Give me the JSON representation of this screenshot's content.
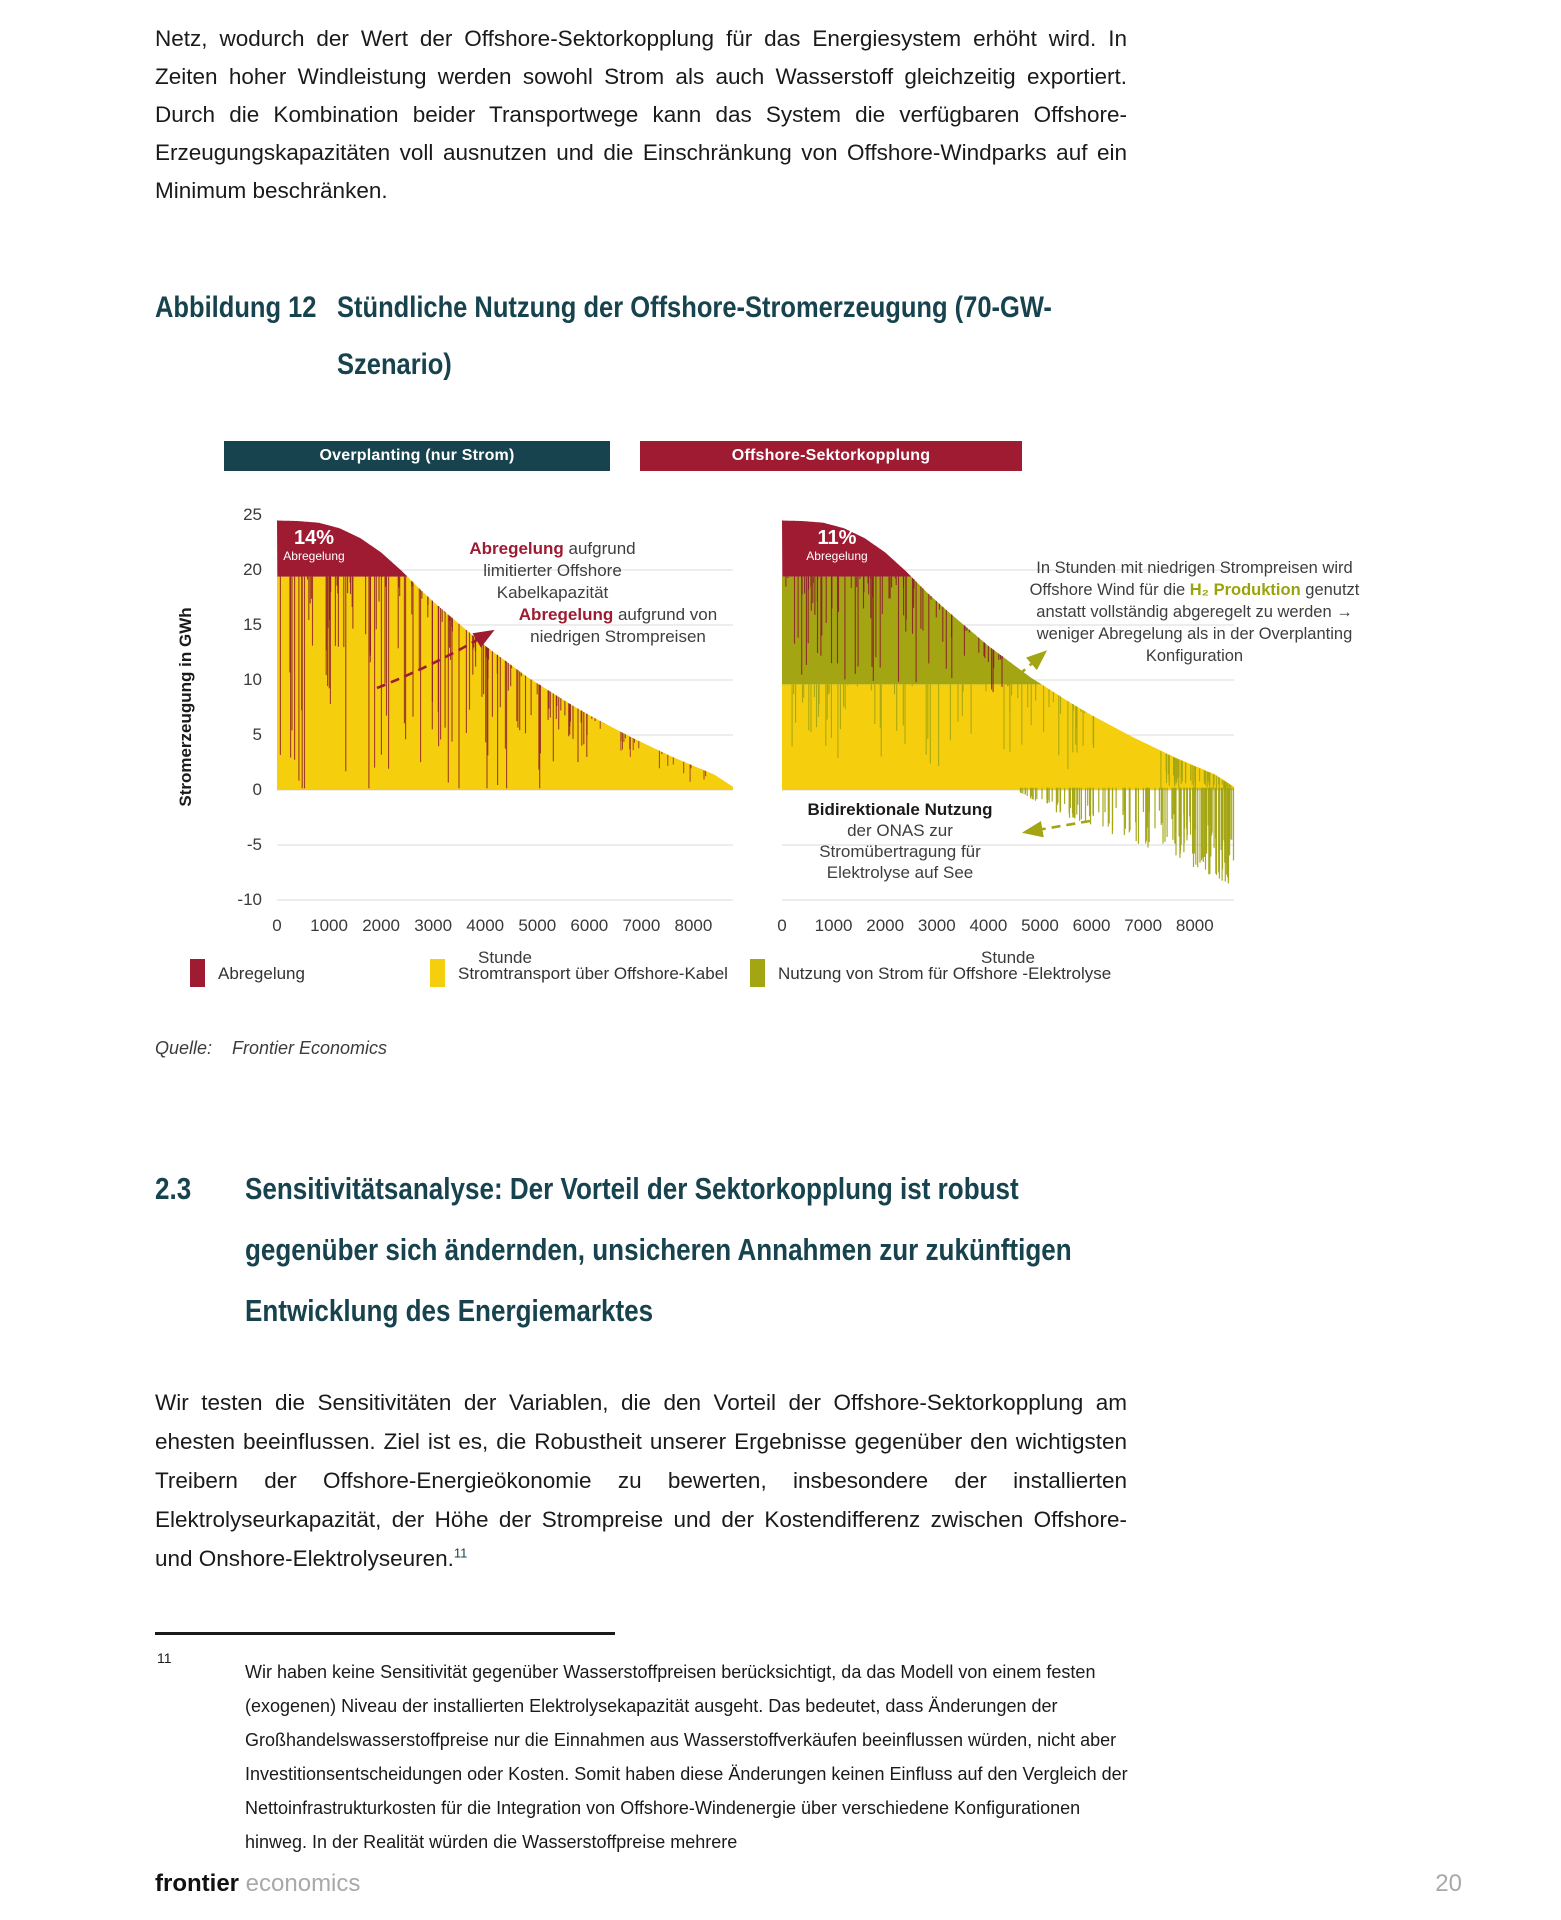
{
  "page": {
    "paragraph_top": "Netz, wodurch der Wert der Offshore-Sektorkopplung für das Energiesystem erhöht wird. In Zeiten hoher Windleistung werden sowohl Strom als auch Wasserstoff gleichzeitig exportiert. Durch die Kombination beider Transportwege kann das System die verfügbaren Offshore-Erzeugungskapazitäten voll ausnutzen und die Einschränkung von Offshore-Windparks auf ein Minimum beschränken.",
    "figure": {
      "label": "Abbildung 12",
      "title_lines": [
        "Stündliche Nutzung der Offshore-Stromerzeugung (70-GW-",
        "Szenario)"
      ],
      "source_label": "Quelle:",
      "source_value": "Frontier Economics"
    },
    "section": {
      "number": "2.3",
      "title_lines": [
        "Sensitivitätsanalyse: Der Vorteil der Sektorkopplung ist robust",
        "gegenüber sich ändernden, unsicheren Annahmen zur zukünftigen",
        "Entwicklung des Energiemarktes"
      ]
    },
    "paragraph_body": "Wir testen die Sensitivitäten der Variablen, die den Vorteil der Offshore-Sektorkopplung am ehesten beeinflussen. Ziel ist es, die Robustheit unserer Ergebnisse gegenüber den wichtigsten Treibern der Offshore-Energieökonomie zu bewerten, insbesondere der installierten Elektrolyseurkapazität, der Höhe der Strompreise und der Kostendifferenz zwischen Offshore- und Onshore-Elektrolyseuren.",
    "footnote_ref": "11",
    "footnote": {
      "number": "11",
      "text": "Wir haben keine Sensitivität gegenüber Wasserstoffpreisen berücksichtigt, da das Modell von einem festen (exogenen) Niveau der installierten Elektrolysekapazität ausgeht. Das bedeutet, dass Änderungen der Großhandelswasserstoffpreise nur die Einnahmen aus Wasserstoffverkäufen beeinflussen würden, nicht aber Investitionsentscheidungen oder Kosten. Somit haben diese Änderungen keinen Einfluss auf den Vergleich der Nettoinfrastrukturkosten für die Integration von Offshore-Windenergie über verschiedene Konfigurationen hinweg. In der Realität würden die Wasserstoffpreise mehrere"
    },
    "footer": {
      "brand_bold": "frontier",
      "brand_light": "economics",
      "page_number": "20"
    }
  },
  "legend": [
    {
      "color": "#9E1B32",
      "label": "Abregelung"
    },
    {
      "color": "#F5CE0E",
      "label": "Stromtransport über Offshore-Kabel"
    },
    {
      "color": "#A3A513",
      "label": "Nutzung von Strom für Offshore -Elektrolyse"
    }
  ],
  "chart_data": [
    {
      "type": "area",
      "title": "Overplanting (nur Strom)",
      "header_color": "#17434F",
      "xlabel": "Stunde",
      "ylabel": "Stromerzeugung in GWh",
      "xlim": [
        0,
        8760
      ],
      "ylim": [
        -10,
        25
      ],
      "xticks": [
        0,
        1000,
        2000,
        3000,
        4000,
        5000,
        6000,
        7000,
        8000
      ],
      "yticks": [
        25,
        20,
        15,
        10,
        5,
        0,
        -5,
        -10
      ],
      "grid": true,
      "legend_position": "bottom",
      "cable_capacity_gwh": 19.4,
      "share_label": {
        "value": "14%",
        "caption": "Abregelung"
      },
      "duration_curve_gwh": [
        [
          0,
          24.5
        ],
        [
          400,
          24.45
        ],
        [
          800,
          24.3
        ],
        [
          1200,
          23.8
        ],
        [
          1600,
          22.9
        ],
        [
          2000,
          21.6
        ],
        [
          2400,
          19.9
        ],
        [
          2800,
          18.0
        ],
        [
          3200,
          16.3
        ],
        [
          3600,
          14.7
        ],
        [
          4000,
          13.1
        ],
        [
          4400,
          11.7
        ],
        [
          4800,
          10.3
        ],
        [
          5200,
          9.1
        ],
        [
          5600,
          7.9
        ],
        [
          6000,
          6.8
        ],
        [
          6400,
          5.8
        ],
        [
          6800,
          4.8
        ],
        [
          7200,
          3.9
        ],
        [
          7600,
          3.0
        ],
        [
          8000,
          2.2
        ],
        [
          8400,
          1.4
        ],
        [
          8760,
          0.3
        ]
      ],
      "series": [
        {
          "name": "Stromtransport über Offshore-Kabel",
          "color": "#F5CE0E",
          "band": "0 bis min(Erzeugung, Kabelkapazität 19.4 GWh)"
        },
        {
          "name": "Abregelung",
          "color": "#9E1B32",
          "band": "oberhalb 19.4 GWh bis Erzeugungskurve, zzgl. preisbedingte Spitzen"
        }
      ],
      "annotations": [
        {
          "id": "cable",
          "lines": [
            [
              {
                "t": "Abregelung",
                "s": "rb"
              },
              {
                "t": " aufgrund",
                "s": ""
              }
            ],
            [
              {
                "t": "limitierter Offshore",
                "s": ""
              }
            ],
            [
              {
                "t": "Kabelkapazität",
                "s": ""
              }
            ]
          ]
        },
        {
          "id": "price",
          "lines": [
            [
              {
                "t": "Abregelung",
                "s": "rb"
              },
              {
                "t": " aufgrund von",
                "s": ""
              }
            ],
            [
              {
                "t": "niedrigen Strompreisen",
                "s": ""
              }
            ]
          ]
        }
      ]
    },
    {
      "type": "area",
      "title": "Offshore-Sektorkopplung",
      "header_color": "#9E1B32",
      "xlabel": "Stunde",
      "ylabel": "Stromerzeugung in GWh",
      "xlim": [
        0,
        8760
      ],
      "ylim": [
        -10,
        25
      ],
      "xticks": [
        0,
        1000,
        2000,
        3000,
        4000,
        5000,
        6000,
        7000,
        8000
      ],
      "yticks": [
        25,
        20,
        15,
        10,
        5,
        0,
        -5,
        -10
      ],
      "grid": true,
      "legend_position": "bottom",
      "cable_capacity_gwh": 19.4,
      "electrolysis_band_top_gwh": 9.6,
      "share_label": {
        "value": "11%",
        "caption": "Abregelung"
      },
      "duration_curve_gwh": [
        [
          0,
          24.5
        ],
        [
          400,
          24.45
        ],
        [
          800,
          24.3
        ],
        [
          1200,
          23.8
        ],
        [
          1600,
          22.9
        ],
        [
          2000,
          21.6
        ],
        [
          2400,
          19.9
        ],
        [
          2800,
          18.0
        ],
        [
          3200,
          16.3
        ],
        [
          3600,
          14.7
        ],
        [
          4000,
          13.1
        ],
        [
          4400,
          11.7
        ],
        [
          4800,
          10.3
        ],
        [
          5200,
          9.1
        ],
        [
          5600,
          7.9
        ],
        [
          6000,
          6.8
        ],
        [
          6400,
          5.8
        ],
        [
          6800,
          4.8
        ],
        [
          7200,
          3.9
        ],
        [
          7600,
          3.0
        ],
        [
          8000,
          2.2
        ],
        [
          8400,
          1.4
        ],
        [
          8760,
          0.3
        ]
      ],
      "negative_use_envelope_gwh": [
        [
          4600,
          -0.2
        ],
        [
          5200,
          -1.8
        ],
        [
          6000,
          -3.4
        ],
        [
          6800,
          -4.8
        ],
        [
          7600,
          -6.3
        ],
        [
          8400,
          -8.2
        ],
        [
          8760,
          -8.8
        ]
      ],
      "series": [
        {
          "name": "Stromtransport über Offshore-Kabel",
          "color": "#F5CE0E",
          "band": "0 bis min(Erzeugung, 9.6 GWh)"
        },
        {
          "name": "Nutzung von Strom für Offshore -Elektrolyse",
          "color": "#A3A513",
          "band": "9.6 bis min(Erzeugung, 19.4 GWh), zzgl. bidirektionale Nutzung unter 0"
        },
        {
          "name": "Abregelung",
          "color": "#9E1B32",
          "band": "oberhalb 19.4 GWh bis Erzeugungskurve"
        }
      ],
      "annotations": [
        {
          "id": "h2",
          "lines": [
            [
              {
                "t": "In Stunden mit niedrigen Strompreisen wird",
                "s": ""
              }
            ],
            [
              {
                "t": "Offshore Wind für die ",
                "s": ""
              },
              {
                "t": "H₂ Produktion",
                "s": "ob"
              },
              {
                "t": " genutzt",
                "s": ""
              }
            ],
            [
              {
                "t": "anstatt vollständig abgeregelt zu werden →",
                "s": ""
              }
            ],
            [
              {
                "t": "weniger Abregelung als in der Overplanting",
                "s": ""
              }
            ],
            [
              {
                "t": "Konfiguration",
                "s": ""
              }
            ]
          ]
        },
        {
          "id": "bidi",
          "lines": [
            [
              {
                "t": "Bidirektionale Nutzung",
                "s": "b"
              }
            ],
            [
              {
                "t": "der ONAS zur",
                "s": ""
              }
            ],
            [
              {
                "t": "Stromübertragung für",
                "s": ""
              }
            ],
            [
              {
                "t": "Elektrolyse auf See",
                "s": ""
              }
            ]
          ]
        }
      ]
    }
  ]
}
